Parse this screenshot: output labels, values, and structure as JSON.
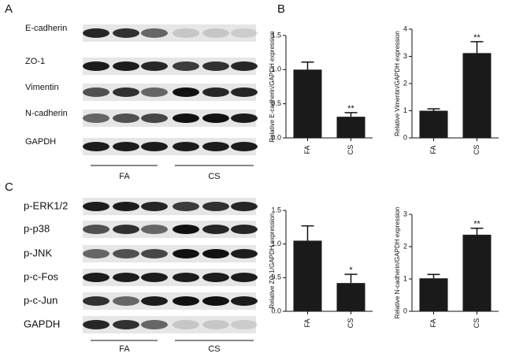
{
  "chart_panel_label": "B",
  "blot_panels": [
    {
      "label": "A",
      "proteins": [
        "E-cadherin",
        "ZO-1",
        "Vimentin",
        "N-cadherin",
        "GAPDH"
      ],
      "groups": [
        "FA",
        "CS"
      ]
    },
    {
      "label": "C",
      "proteins": [
        "p-ERK1/2",
        "p-p38",
        "p-JNK",
        "p-c-Fos",
        "p-c-Jun",
        "GAPDH"
      ],
      "groups": [
        "FA",
        "CS"
      ]
    }
  ],
  "chart_data": [
    {
      "type": "bar",
      "y_label": "Relative E-cadherin/GAPDH expression",
      "categories": [
        "FA",
        "CS"
      ],
      "values": [
        1.0,
        0.31
      ],
      "errors": [
        0.11,
        0.06
      ],
      "significance": [
        null,
        "**"
      ],
      "color": "#1a1a1a",
      "ylim": [
        0,
        1.5
      ],
      "yticks": [
        {
          "value": 0,
          "label": "0.0"
        },
        {
          "value": 0.5,
          "label": "0.5"
        },
        {
          "value": 1.0,
          "label": "1.0"
        },
        {
          "value": 1.5,
          "label": "1.5"
        }
      ]
    },
    {
      "type": "bar",
      "y_label": "Relative Vimentin/GAPDH expression",
      "categories": [
        "FA",
        "CS"
      ],
      "values": [
        1.0,
        3.12
      ],
      "errors": [
        0.07,
        0.42
      ],
      "significance": [
        null,
        "**"
      ],
      "color": "#1a1a1a",
      "ylim": [
        0,
        4
      ],
      "yticks": [
        0,
        1,
        2,
        3,
        4
      ]
    },
    {
      "type": "bar",
      "y_label": "Relative ZO-1/GAPDH expression",
      "categories": [
        "FA",
        "CS"
      ],
      "values": [
        1.05,
        0.42
      ],
      "errors": [
        0.22,
        0.13
      ],
      "significance": [
        null,
        "*"
      ],
      "color": "#1a1a1a",
      "ylim": [
        0,
        1.5
      ],
      "yticks": [
        {
          "value": 0,
          "label": "0.0"
        },
        {
          "value": 0.5,
          "label": "0.5"
        },
        {
          "value": 1.0,
          "label": "1.0"
        },
        {
          "value": 1.5,
          "label": "1.5"
        }
      ]
    },
    {
      "type": "bar",
      "y_label": "Relative N-cadherin/GAPDH expression",
      "categories": [
        "FA",
        "CS"
      ],
      "values": [
        1.02,
        2.37
      ],
      "errors": [
        0.12,
        0.2
      ],
      "significance": [
        null,
        "**"
      ],
      "color": "#1a1a1a",
      "ylim": [
        0,
        3
      ],
      "yticks": [
        0,
        1,
        2,
        3
      ]
    }
  ]
}
